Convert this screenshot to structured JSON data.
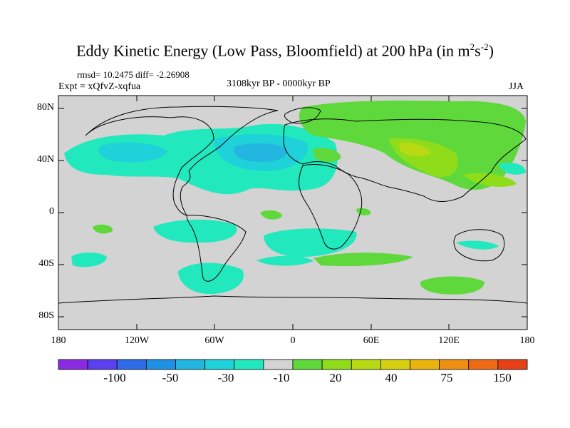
{
  "title": {
    "main": "Eddy Kinetic Energy (Low Pass, Bloomfield) at 200 hPa (in m",
    "sup1": "2",
    "mid": "s",
    "sup2": "-2",
    "end": ")"
  },
  "stats_line": "rmsd= 10.2475 diff= -2.26908",
  "experiment": "Expt = xQfvZ-xqfua",
  "period": "3108kyr BP - 0000kyr BP",
  "season": "JJA",
  "y_ticks": [
    "80N",
    "40N",
    "0",
    "40S",
    "80S"
  ],
  "x_ticks": [
    "180",
    "120W",
    "60W",
    "0",
    "60E",
    "120E",
    "180"
  ],
  "colorbar": {
    "colors": [
      "#8a2be2",
      "#5b3ff0",
      "#2e6ce8",
      "#1e90e6",
      "#22b6e0",
      "#1fd1d8",
      "#22e8be",
      "#d3d3d3",
      "#5fd83c",
      "#8fdd1a",
      "#b8da14",
      "#d7cf10",
      "#eab40f",
      "#ef8f12",
      "#ee6a14",
      "#e54018"
    ],
    "tick_labels": [
      "-100",
      "-50",
      "-30",
      "-10",
      "20",
      "40",
      "75",
      "150"
    ]
  },
  "map_colors": {
    "background": "#d3d3d3",
    "negative_weak": "#22e8be",
    "negative_mid": "#1fd1d8",
    "negative_strong": "#22b6e0",
    "positive_weak": "#5fd83c",
    "positive_mid": "#8fdd1a",
    "positive_strong": "#b8da14"
  }
}
